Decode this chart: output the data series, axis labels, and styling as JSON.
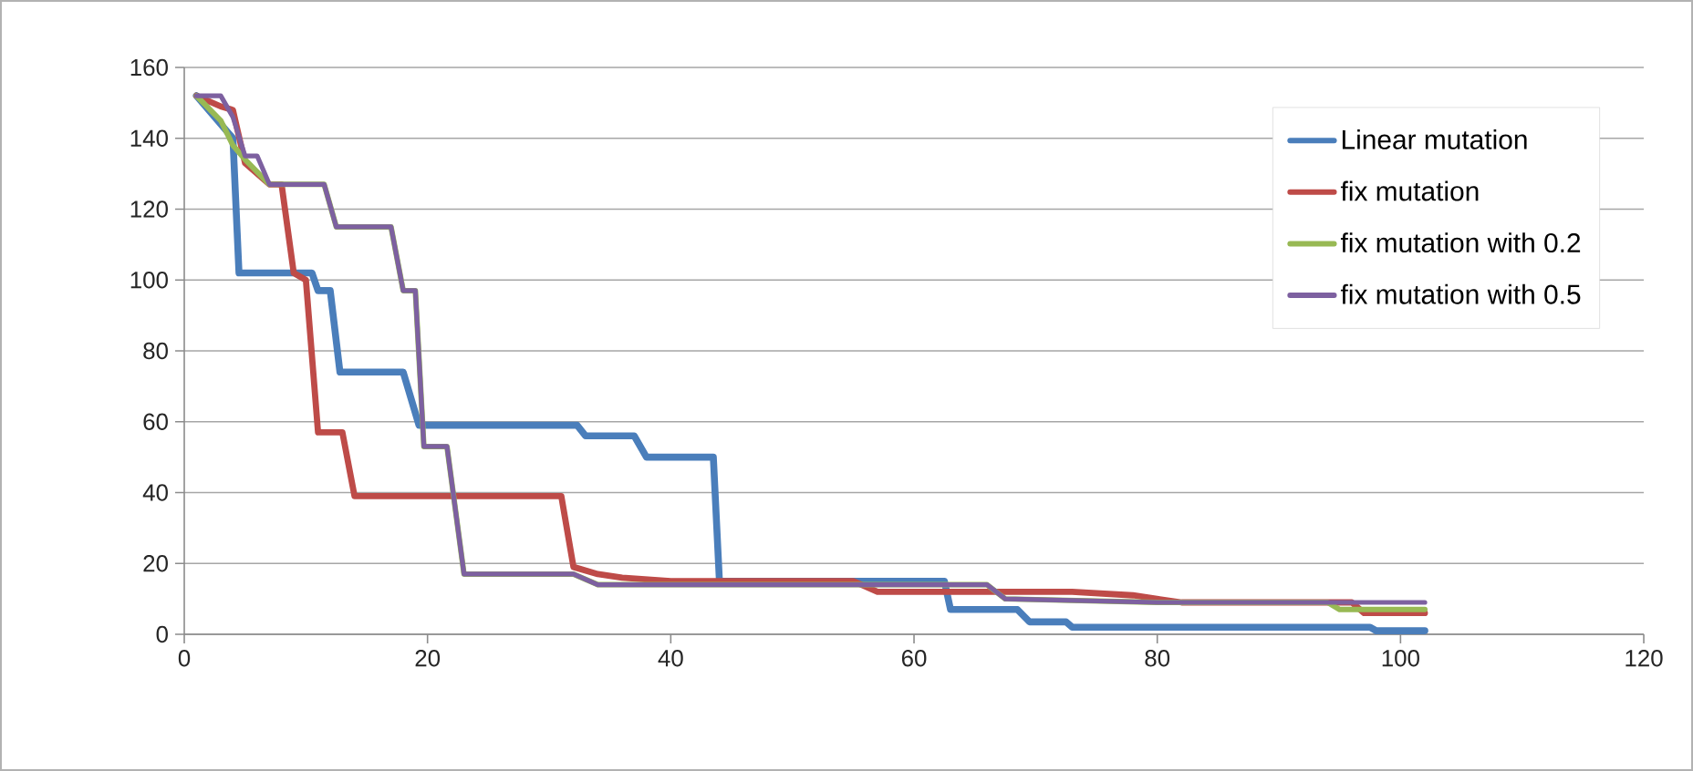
{
  "chart_data": {
    "type": "line",
    "xlim": [
      0,
      120
    ],
    "xticks": [
      0,
      20,
      40,
      60,
      80,
      100,
      120
    ],
    "ylim": [
      0,
      160
    ],
    "yticks": [
      0,
      20,
      40,
      60,
      80,
      100,
      120,
      140,
      160
    ],
    "grid": "y",
    "legend": "top right",
    "marker": "none",
    "line_style": "solid",
    "series": [
      {
        "name": "Linear mutation",
        "color": "#4a7ebb",
        "x": [
          1,
          4,
          4.5,
          10.5,
          11,
          12,
          12.8,
          18,
          19.3,
          32.3,
          33,
          37,
          38,
          43.5,
          44,
          62.5,
          63,
          68.5,
          69.5,
          72.5,
          73,
          97.5,
          98,
          102
        ],
        "values": [
          152,
          140,
          102,
          102,
          97,
          97,
          74,
          74,
          59,
          59,
          56,
          56,
          50,
          50,
          15,
          15,
          7,
          7,
          3.5,
          3.5,
          2,
          2,
          1,
          1
        ]
      },
      {
        "name": "fix mutation",
        "color": "#be4b48",
        "x": [
          1,
          3,
          4,
          5,
          7,
          8,
          9,
          10,
          11,
          13,
          14,
          31,
          32,
          34,
          36,
          40,
          55,
          57,
          66,
          67,
          73,
          78,
          82,
          96,
          97,
          102
        ],
        "values": [
          152,
          149,
          148,
          133,
          127,
          127,
          102,
          100,
          57,
          57,
          39,
          39,
          19,
          17,
          16,
          15,
          15,
          12,
          12,
          12,
          12,
          11,
          9,
          9,
          6,
          6
        ]
      },
      {
        "name": "fix mutation with 0.2",
        "color": "#98b954",
        "x": [
          1,
          3,
          4,
          5,
          7,
          11.5,
          12.5,
          17,
          18,
          19,
          19.7,
          21.6,
          23,
          32,
          34,
          66,
          67.5,
          80,
          94,
          95,
          102
        ],
        "values": [
          152,
          145,
          138,
          134,
          127,
          127,
          115,
          115,
          97,
          97,
          53,
          53,
          17,
          17,
          14,
          14,
          10,
          9,
          9,
          7,
          7
        ]
      },
      {
        "name": "fix mutation with 0.5",
        "color": "#7d60a0",
        "x": [
          1,
          3,
          4,
          5,
          6,
          7,
          11.5,
          12.5,
          17,
          18,
          19,
          19.7,
          21.6,
          23,
          32,
          34,
          50,
          66,
          67.5,
          80,
          102
        ],
        "values": [
          152,
          152,
          146,
          135,
          135,
          127,
          127,
          115,
          115,
          97,
          97,
          53,
          53,
          17,
          17,
          14,
          14,
          14,
          10,
          9,
          9
        ]
      }
    ]
  }
}
